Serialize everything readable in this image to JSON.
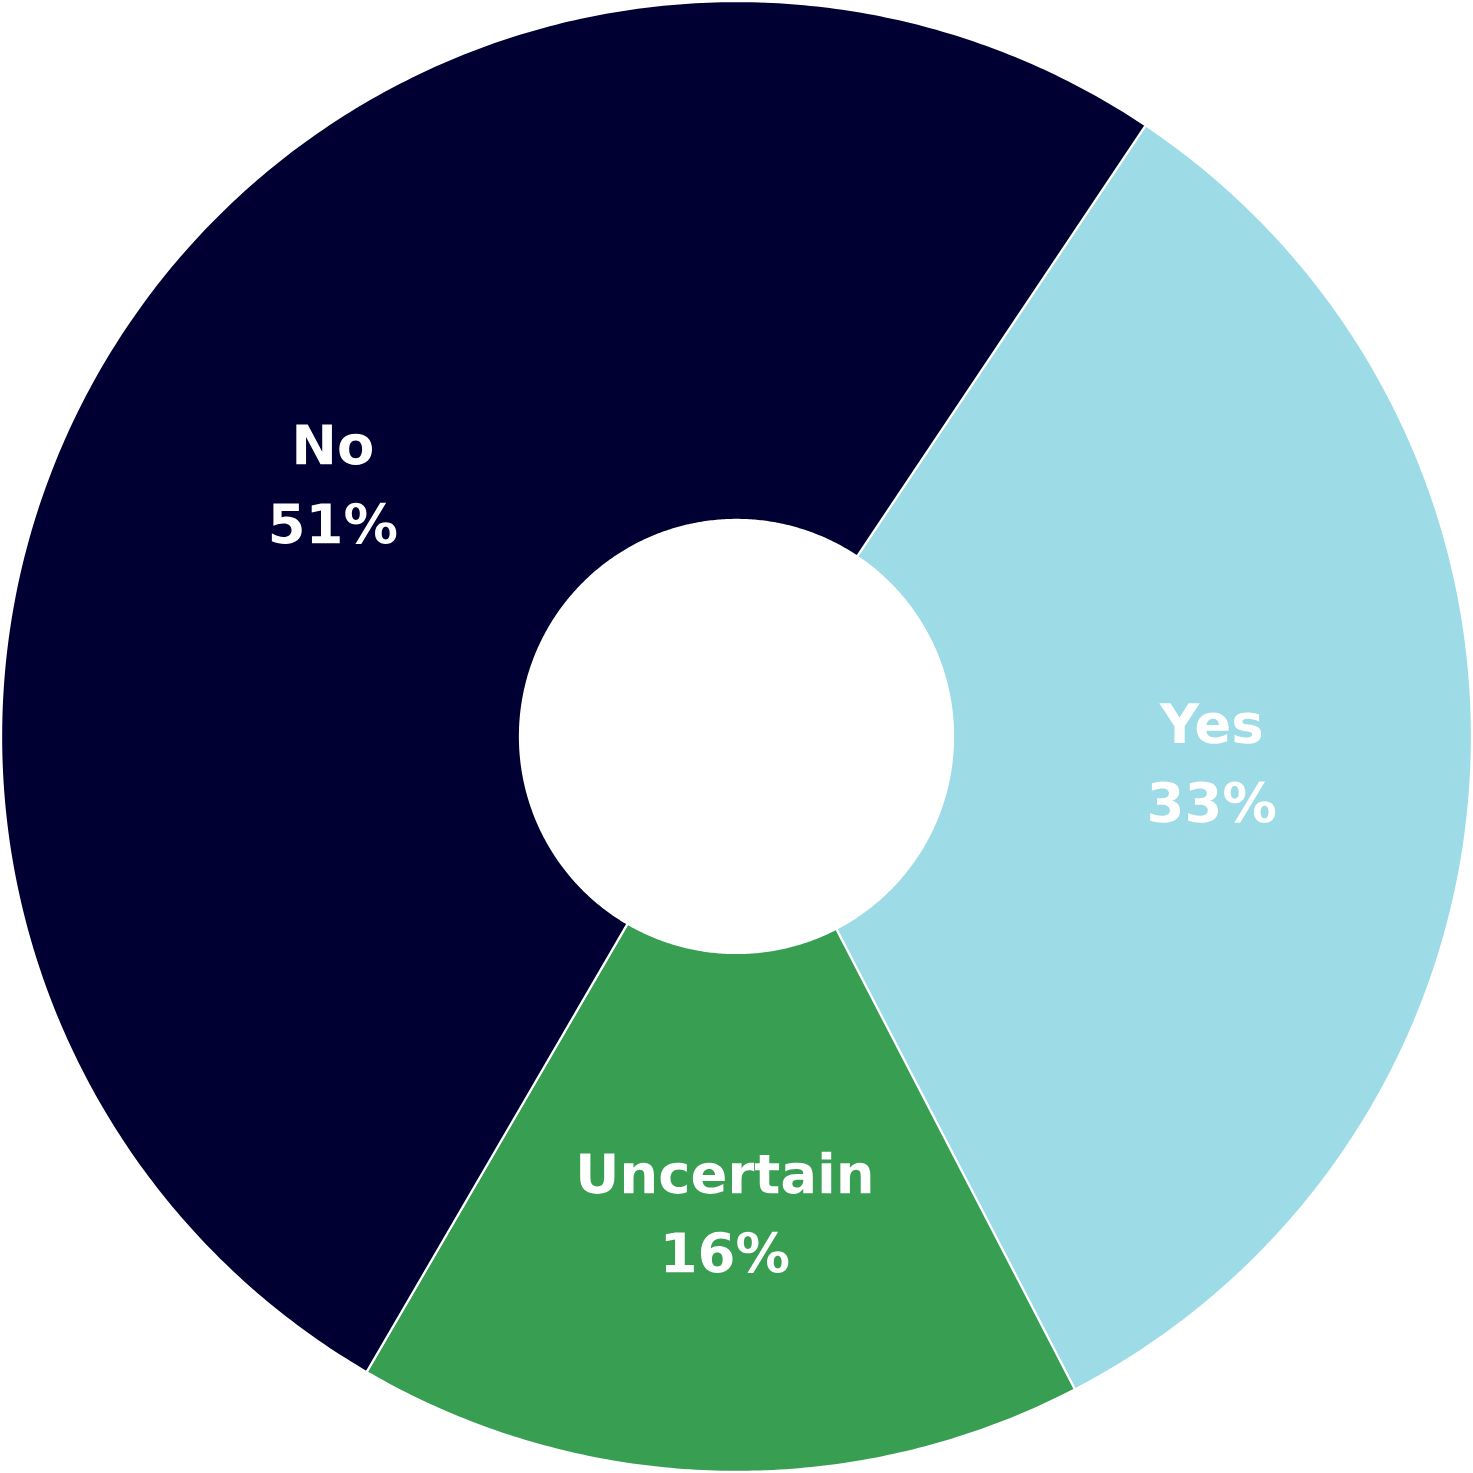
{
  "chart_data": {
    "type": "donut",
    "categories": [
      "Yes",
      "Uncertain",
      "No"
    ],
    "values": [
      33,
      16,
      51
    ],
    "colors": [
      "#9ddbe7",
      "#389f52",
      "#000033"
    ],
    "value_labels": [
      "33%",
      "16%",
      "51%"
    ]
  }
}
